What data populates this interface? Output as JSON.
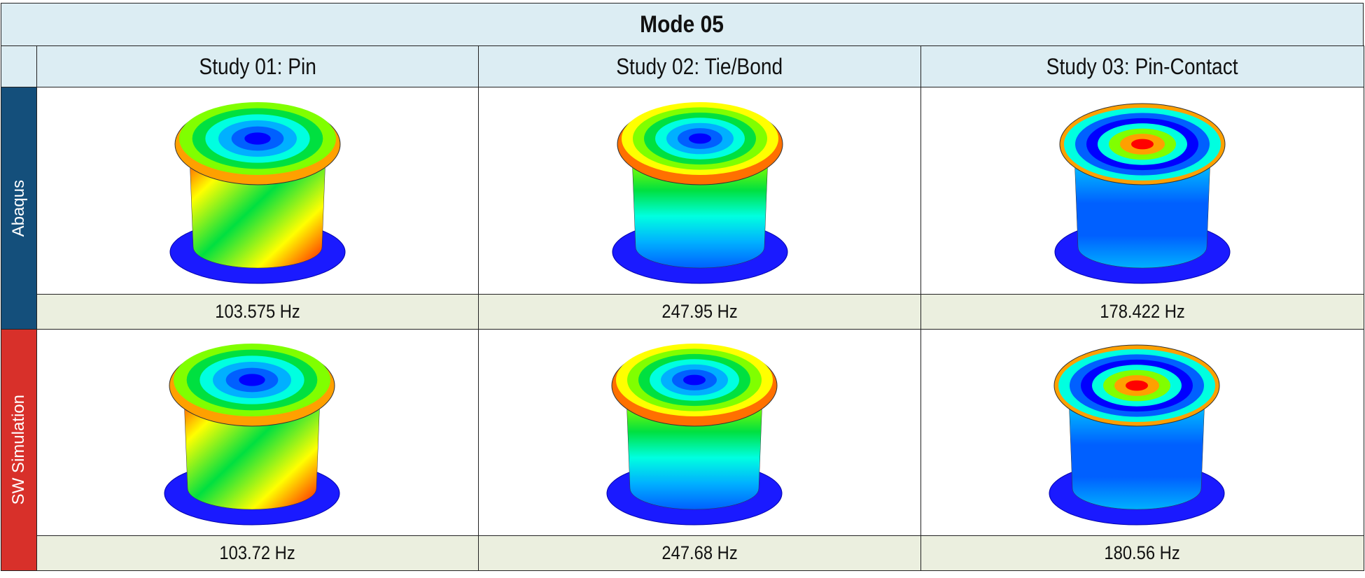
{
  "table": {
    "title": "Mode 05",
    "columns": [
      "Study 01: Pin",
      "Study 02: Tie/Bond",
      "Study 03: Pin-Contact"
    ],
    "rows": [
      {
        "label": "Abaqus",
        "values": [
          "103.575 Hz",
          "247.95 Hz",
          "178.422 Hz"
        ]
      },
      {
        "label": "SW Simulation",
        "values": [
          "103.72 Hz",
          "247.68 Hz",
          "180.56 Hz"
        ]
      }
    ]
  }
}
